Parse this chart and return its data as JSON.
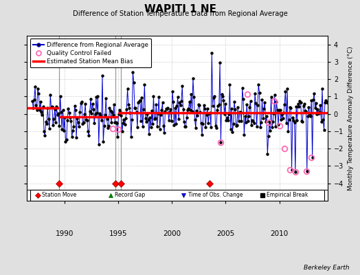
{
  "title": "WAPITI 1 NE",
  "subtitle": "Difference of Station Temperature Data from Regional Average",
  "ylabel": "Monthly Temperature Anomaly Difference (°C)",
  "xlim": [
    1986.5,
    2014.5
  ],
  "background_color": "#e0e0e0",
  "plot_bg_color": "#ffffff",
  "line_color": "#0000cc",
  "dot_color": "#000000",
  "bias_color": "#ff0000",
  "qc_color": "#ff69b4",
  "grid_color": "#d0d0d0",
  "station_move_years": [
    1989.5,
    1994.75,
    1995.25,
    2003.5
  ],
  "vertical_lines": [
    1989.5,
    1994.75,
    1995.25
  ],
  "bias_segments": [
    {
      "x": [
        1986.5,
        1989.5
      ],
      "y": [
        0.35,
        0.35
      ]
    },
    {
      "x": [
        1989.5,
        1995.0
      ],
      "y": [
        -0.18,
        -0.18
      ]
    },
    {
      "x": [
        1995.0,
        2014.5
      ],
      "y": [
        0.05,
        0.05
      ]
    }
  ],
  "qc_failed_points": [
    [
      1994.5,
      -0.85
    ],
    [
      1995.0,
      -0.9
    ],
    [
      2004.5,
      -1.65
    ],
    [
      2007.0,
      1.15
    ],
    [
      2009.0,
      -0.5
    ],
    [
      2009.5,
      0.75
    ],
    [
      2010.0,
      -0.7
    ],
    [
      2010.5,
      -2.0
    ],
    [
      2011.0,
      -3.2
    ],
    [
      2011.5,
      -3.35
    ],
    [
      2012.5,
      -3.3
    ],
    [
      2013.0,
      -2.5
    ]
  ],
  "seed": 42,
  "berkeley_earth_text": "Berkeley Earth",
  "xticks": [
    1990,
    1995,
    2000,
    2005,
    2010
  ],
  "yticks": [
    -4,
    -3,
    -2,
    -1,
    0,
    1,
    2,
    3,
    4
  ]
}
